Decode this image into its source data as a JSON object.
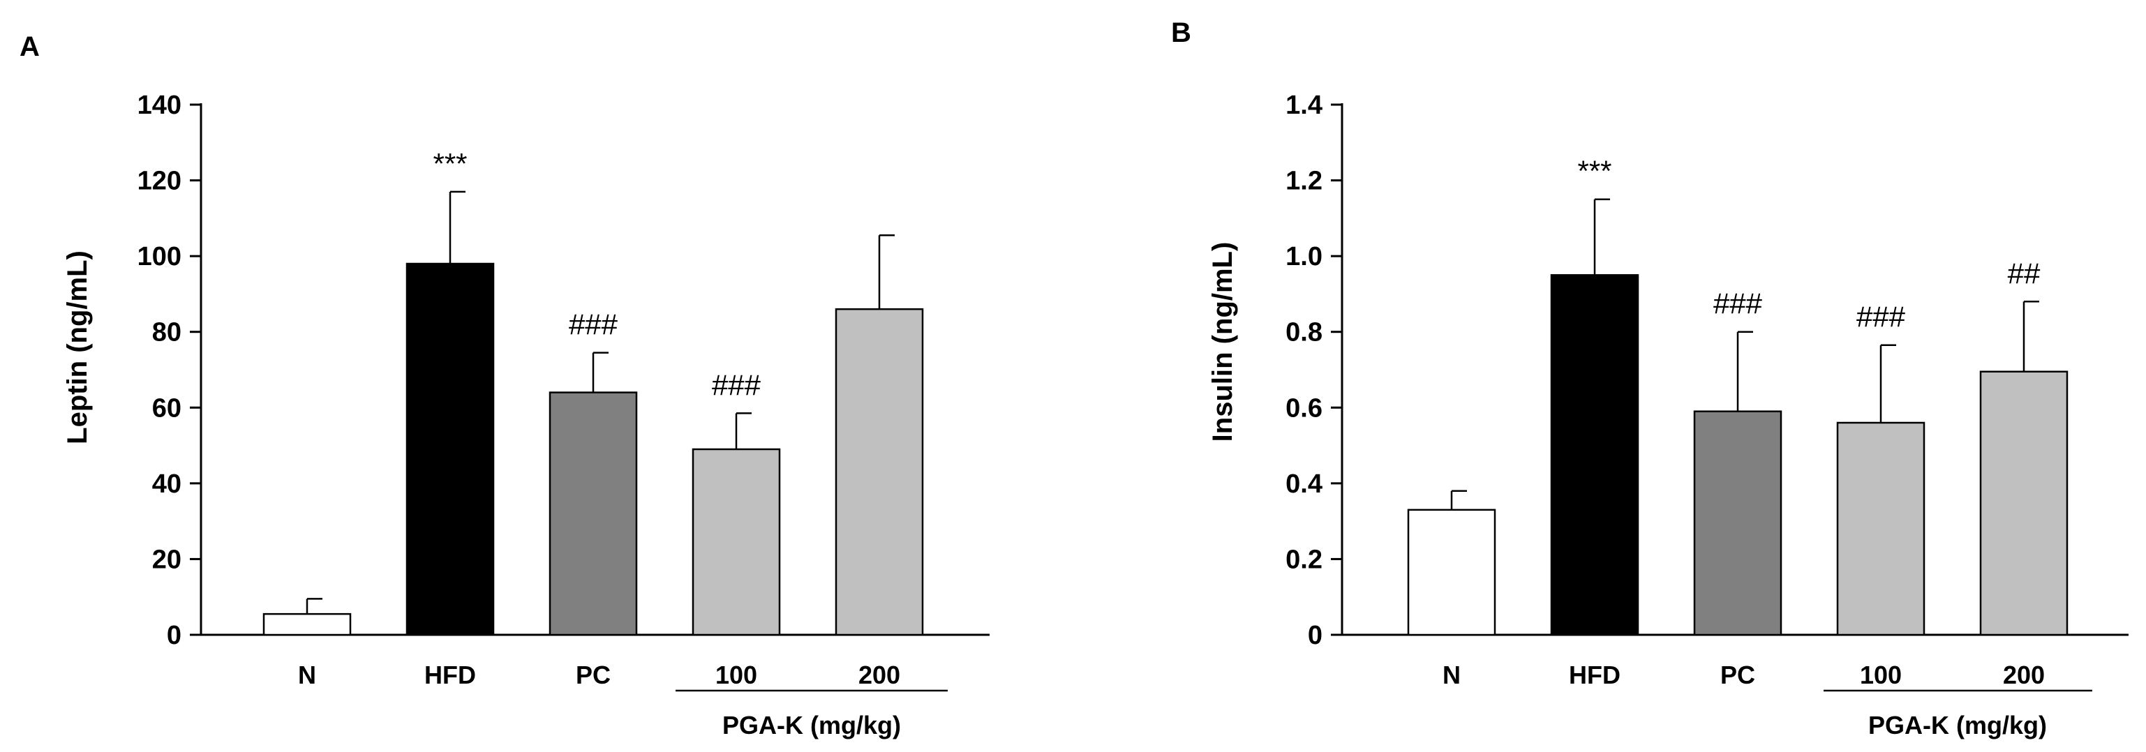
{
  "chart_data": [
    {
      "type": "bar",
      "panel": "A",
      "ylabel": "Leptin (ng/mL)",
      "ylim": [
        0,
        140
      ],
      "yticks": [
        0,
        20,
        40,
        60,
        80,
        100,
        120,
        140
      ],
      "categories": [
        "N",
        "HFD",
        "PC",
        "100",
        "200"
      ],
      "values": [
        5.5,
        98,
        64,
        49,
        86
      ],
      "errors": [
        4,
        19,
        10.5,
        9.5,
        19.5
      ],
      "colors": [
        "#ffffff",
        "#000000",
        "#808080",
        "#c0c0c0",
        "#c0c0c0"
      ],
      "annotations": [
        "",
        "***",
        "###",
        "###",
        ""
      ],
      "group_label": "PGA-K (mg/kg)",
      "group_indices": [
        3,
        4
      ]
    },
    {
      "type": "bar",
      "panel": "B",
      "ylabel": "Insulin (ng/mL)",
      "ylim": [
        0,
        1.4
      ],
      "yticks": [
        "0",
        "0.2",
        "0.4",
        "0.6",
        "0.8",
        "1.0",
        "1.2",
        "1.4"
      ],
      "categories": [
        "N",
        "HFD",
        "PC",
        "100",
        "200"
      ],
      "values": [
        0.33,
        0.95,
        0.59,
        0.56,
        0.695
      ],
      "errors": [
        0.05,
        0.2,
        0.21,
        0.205,
        0.185
      ],
      "colors": [
        "#ffffff",
        "#000000",
        "#808080",
        "#c0c0c0",
        "#c0c0c0"
      ],
      "annotations": [
        "",
        "***",
        "###",
        "###",
        "##"
      ],
      "group_label": "PGA-K (mg/kg)",
      "group_indices": [
        3,
        4
      ]
    }
  ]
}
